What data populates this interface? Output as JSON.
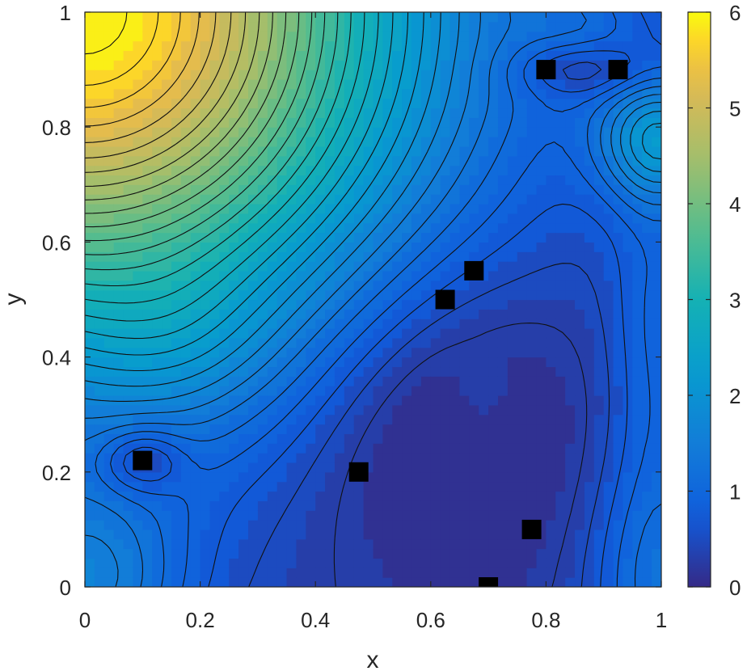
{
  "chart_data": {
    "type": "heatmap",
    "subtype": "filled-contour",
    "title": "",
    "xlabel": "x",
    "ylabel": "y",
    "xlim": [
      0,
      1
    ],
    "ylim": [
      0,
      1
    ],
    "xticks": [
      0,
      0.2,
      0.4,
      0.6,
      0.8,
      1
    ],
    "yticks": [
      0,
      0.2,
      0.4,
      0.6,
      0.8,
      1
    ],
    "xtick_labels": [
      "0",
      "0.2",
      "0.4",
      "0.6",
      "0.8",
      "1"
    ],
    "ytick_labels": [
      "0",
      "0.2",
      "0.4",
      "0.6",
      "0.8",
      "1"
    ],
    "colorbar": {
      "range": [
        0,
        6
      ],
      "ticks": [
        0,
        1,
        2,
        3,
        4,
        5,
        6
      ],
      "tick_labels": [
        "0",
        "1",
        "2",
        "3",
        "4",
        "5",
        "6"
      ],
      "colormap": "parula",
      "colors": [
        "#352a87",
        "#0f5cdd",
        "#1481d6",
        "#06a4ca",
        "#2eb7a4",
        "#87bf77",
        "#d1bb59",
        "#fec832",
        "#f9fb0e"
      ]
    },
    "approx_field": {
      "description": "",
      "peak_value": 6,
      "peak_location": [
        0,
        1
      ]
    },
    "markers": {
      "shape": "square",
      "color": "#000000",
      "points": [
        {
          "x": 0.1,
          "y": 0.22
        },
        {
          "x": 0.475,
          "y": 0.2
        },
        {
          "x": 0.625,
          "y": 0.5
        },
        {
          "x": 0.675,
          "y": 0.55
        },
        {
          "x": 0.775,
          "y": 0.1
        },
        {
          "x": 0.7,
          "y": 0.0
        },
        {
          "x": 0.8,
          "y": 0.9
        },
        {
          "x": 0.925,
          "y": 0.9
        }
      ]
    },
    "grid": false,
    "legend": "none"
  }
}
